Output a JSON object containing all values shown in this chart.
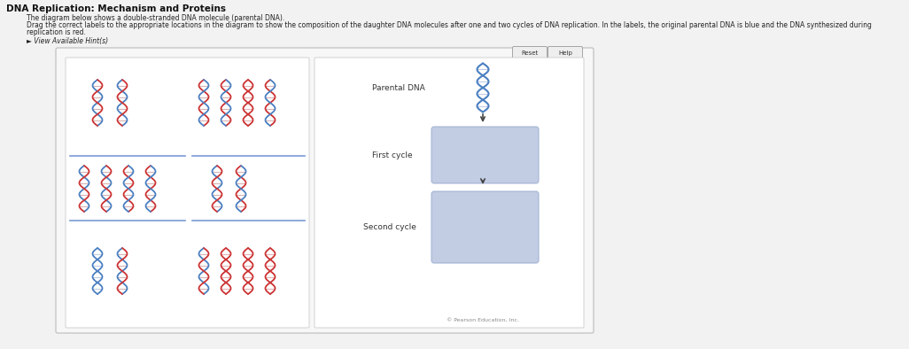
{
  "title": "DNA Replication: Mechanism and Proteins",
  "subtitle_line1": "The diagram below shows a double-stranded DNA molecule (parental DNA).",
  "subtitle_line2": "Drag the correct labels to the appropriate locations in the diagram to show the composition of the daughter DNA molecules after one and two cycles of DNA replication. In the labels, the original parental DNA is blue and the DNA synthesized during",
  "subtitle_line3": "replication is red.",
  "hint_text": "► View Available Hint(s)",
  "reset_btn": "Reset",
  "help_btn": "Help",
  "copyright": "© Pearson Education, Inc.",
  "cycle_box_color": "#b8c4df",
  "label_parental": "Parental DNA",
  "label_first": "First cycle",
  "label_second": "Second cycle",
  "arrow_color": "#444444",
  "separator_color": "#7a9ad4",
  "bg_color": "#f2f2f2",
  "panel_bg": "#f7f7f7",
  "white": "#ffffff",
  "title_fontsize": 7.5,
  "body_fontsize": 5.5,
  "label_fontsize": 6.5,
  "blue_strand": "#4a7fc1",
  "red_strand": "#cc3333",
  "blue_rung": "#aabbdd",
  "mixed_rung": "#cc9999",
  "red_rung": "#dd9999"
}
